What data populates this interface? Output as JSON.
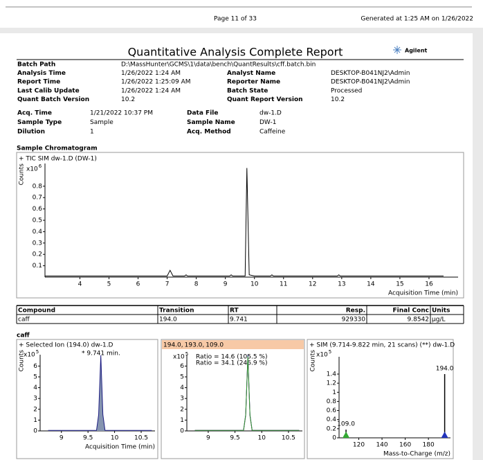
{
  "page_header": {
    "page": "Page 11 of 33",
    "generated": "Generated at 1:25 AM on 1/26/2022"
  },
  "report": {
    "title": "Quantitative Analysis Complete Report",
    "brand": "Agilent"
  },
  "batch_info": {
    "left": [
      {
        "label": "Batch Path",
        "value": "D:\\MassHunter\\GCMS\\1\\data\\bench\\QuantResults\\cff.batch.bin"
      },
      {
        "label": "Analysis Time",
        "value": "1/26/2022 1:24 AM"
      },
      {
        "label": "Report Time",
        "value": "1/26/2022 1:25:09 AM"
      },
      {
        "label": "Last Calib Update",
        "value": "1/26/2022 1:24 AM"
      },
      {
        "label": "Quant Batch Version",
        "value": "10.2"
      }
    ],
    "right": [
      {
        "label": "Analyst Name",
        "value": "DESKTOP-B041NJ2\\Admin"
      },
      {
        "label": "Reporter Name",
        "value": "DESKTOP-B041NJ2\\Admin"
      },
      {
        "label": "Batch State",
        "value": "Processed"
      },
      {
        "label": "Quant Report Version",
        "value": "10.2"
      }
    ]
  },
  "sample_info": {
    "left": [
      {
        "label": "Acq. Time",
        "value": "1/21/2022 10:37 PM"
      },
      {
        "label": "Sample Type",
        "value": "Sample"
      },
      {
        "label": "Dilution",
        "value": "1"
      }
    ],
    "right": [
      {
        "label": "Data File",
        "value": "dw-1.D"
      },
      {
        "label": "Sample Name",
        "value": "DW-1"
      },
      {
        "label": "Acq. Method",
        "value": "Caffeine"
      }
    ]
  },
  "chromatogram_section": {
    "title": "Sample Chromatogram",
    "chart": {
      "type": "line",
      "trace_label": "+ TIC SIM dw-1.D (DW-1)",
      "y_label": "Counts",
      "y_multiplier": "x10",
      "y_exponent": "6",
      "x_label": "Acquisition Time (min)",
      "xlim": [
        2.8,
        17
      ],
      "ylim": [
        0,
        1
      ],
      "xticks": [
        4,
        5,
        6,
        7,
        8,
        9,
        10,
        11,
        12,
        13,
        14,
        15,
        16
      ],
      "yticks": [
        0.1,
        0.2,
        0.3,
        0.4,
        0.5,
        0.6,
        0.7,
        0.8
      ],
      "series": [
        {
          "color": "#000000",
          "x": [
            2.8,
            7.0,
            7.1,
            7.2,
            7.6,
            7.65,
            7.7,
            9.15,
            9.2,
            9.25,
            9.68,
            9.74,
            9.82,
            10.0,
            10.55,
            10.6,
            10.65,
            12.85,
            12.9,
            12.95,
            16.5
          ],
          "values": [
            0.01,
            0.01,
            0.06,
            0.01,
            0.01,
            0.02,
            0.01,
            0.01,
            0.02,
            0.01,
            0.01,
            0.96,
            0.02,
            0.01,
            0.01,
            0.02,
            0.01,
            0.01,
            0.02,
            0.01,
            0.01
          ]
        }
      ]
    }
  },
  "results_table": {
    "headers": [
      "Compound",
      "Transition",
      "RT",
      "Resp.",
      "Final Conc",
      "Units"
    ],
    "rows": [
      [
        "caff",
        "194.0",
        "9.741",
        "929330",
        "9.8542",
        "µg/L"
      ]
    ]
  },
  "compound": {
    "name": "caff",
    "charts": [
      {
        "type": "line",
        "trace_label": "+ Selected Ion (194.0) dw-1.D",
        "y_label": "Counts",
        "y_multiplier": "x10",
        "y_exponent": "5",
        "annotations": [
          {
            "text": "* 9.741 min.",
            "color": "#000000"
          }
        ],
        "x_label": "Acquisition Time (min)",
        "xlim": [
          8.6,
          10.76
        ],
        "ylim": [
          0,
          7.05
        ],
        "xticks": [
          9,
          9.5,
          10,
          10.5
        ],
        "yticks": [
          0,
          1,
          2,
          3,
          4,
          5,
          6
        ],
        "fill": "#8594b0",
        "series": [
          {
            "color": "#1a1a80",
            "x": [
              8.75,
              9.66,
              9.7,
              9.741,
              9.78,
              9.82,
              10.7
            ],
            "values": [
              0.05,
              0.05,
              1.5,
              7,
              1.5,
              0.05,
              0.05
            ]
          }
        ]
      },
      {
        "type": "line",
        "y_multiplier": "x10",
        "y_exponent": "5",
        "header_color": "#f7c9a6",
        "legend_separator": ", ",
        "annotations": [
          {
            "text": "Ratio = 14.6 (105.5 %)",
            "color": "#2222cc"
          },
          {
            "text": "Ratio = 34.1 (246.9 %)",
            "color": "#118811"
          }
        ],
        "xlim": [
          8.6,
          10.76
        ],
        "ylim": [
          0,
          7.05
        ],
        "xticks": [
          9,
          9.5,
          10,
          10.5
        ],
        "yticks": [
          0,
          1,
          2,
          3,
          4,
          5,
          6
        ],
        "series": [
          {
            "name": "194.0",
            "color": "#1a1aa0",
            "x": [
              8.75,
              9.66,
              9.7,
              9.741,
              9.78,
              9.82,
              10.7
            ],
            "values": [
              0.05,
              0.05,
              1.5,
              7,
              1.5,
              0.05,
              0.05
            ]
          },
          {
            "name": "193.0",
            "color": "#a0209a",
            "x": [
              8.75,
              9.66,
              9.7,
              9.741,
              9.78,
              9.82,
              10.7
            ],
            "values": [
              0.05,
              0.05,
              1.4,
              6.8,
              1.4,
              0.05,
              0.05
            ]
          },
          {
            "name": "109.0",
            "color": "#2a9a2a",
            "x": [
              8.75,
              9.66,
              9.7,
              9.741,
              9.78,
              9.82,
              10.7
            ],
            "values": [
              0.05,
              0.05,
              1.45,
              6.9,
              1.45,
              0.05,
              0.05
            ]
          }
        ]
      },
      {
        "type": "spectrum",
        "trace_label": "+ SIM (9.714-9.822 min, 21 scans) (**) dw-1.D",
        "y_label": "Counts",
        "y_multiplier": "x10",
        "y_exponent": "5",
        "x_label": "Mass-to-Charge (m/z)",
        "xlim": [
          103,
          199
        ],
        "ylim": [
          0,
          1.78
        ],
        "xticks": [
          120,
          140,
          160,
          180
        ],
        "yticks": [
          0,
          0.2,
          0.4,
          0.6,
          0.8,
          1,
          1.2,
          1.4
        ],
        "x": [
          109.0,
          194.0
        ],
        "x_labels": [
          "109.0",
          "194.0"
        ],
        "values": [
          0.18,
          1.4
        ],
        "color": "#000000",
        "marker_colors": [
          "#33aa33",
          "#2233bb"
        ]
      }
    ]
  }
}
